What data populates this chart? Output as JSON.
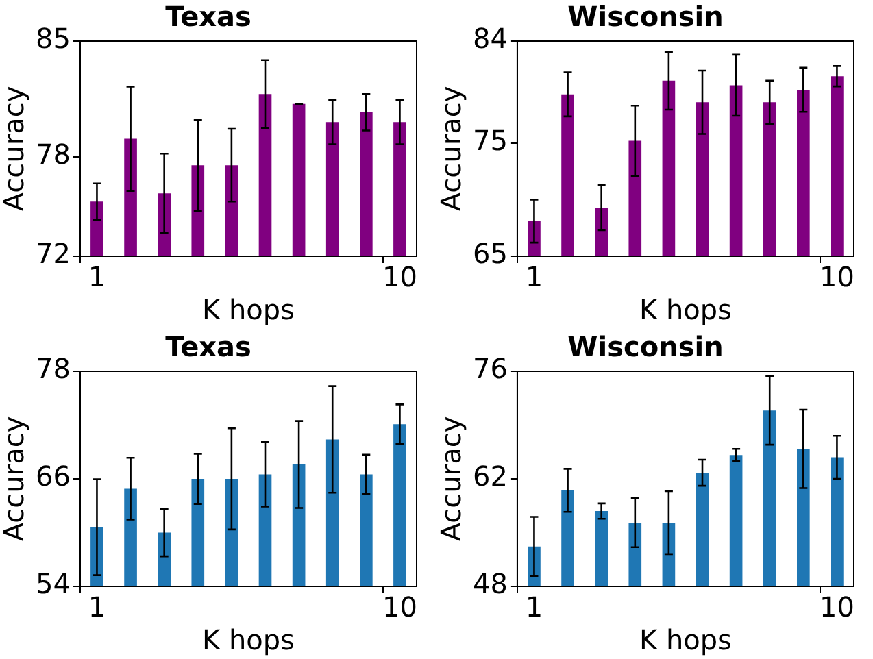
{
  "chart_data": [
    {
      "type": "bar",
      "title": "Texas",
      "xlabel": "K hops",
      "ylabel": "Accuracy",
      "categories": [
        "1",
        null,
        null,
        null,
        null,
        null,
        null,
        null,
        null,
        "10"
      ],
      "color": "#800080",
      "values": [
        75.3,
        79.1,
        75.8,
        77.5,
        77.5,
        81.8,
        81.2,
        80.1,
        80.7,
        80.1
      ],
      "errors": [
        1.1,
        3.15,
        2.4,
        2.75,
        2.2,
        2.05,
        0,
        1.33,
        1.1,
        1.33
      ],
      "ylim": [
        72,
        85
      ],
      "yticks": [
        72,
        78,
        85
      ]
    },
    {
      "type": "bar",
      "title": "Wisconsin",
      "xlabel": "K hops",
      "ylabel": "Accuracy",
      "categories": [
        "1",
        null,
        null,
        null,
        null,
        null,
        null,
        null,
        null,
        "10"
      ],
      "color": "#800080",
      "values": [
        68.1,
        79.3,
        69.3,
        75.2,
        80.5,
        78.6,
        80.1,
        78.6,
        79.7,
        80.9
      ],
      "errors": [
        1.9,
        1.95,
        2.0,
        3.1,
        2.55,
        2.8,
        2.7,
        1.9,
        1.95,
        0.9
      ],
      "ylim": [
        65,
        84
      ],
      "yticks": [
        65,
        75,
        84
      ]
    },
    {
      "type": "bar",
      "title": "Texas",
      "xlabel": "K hops",
      "ylabel": "Accuracy",
      "categories": [
        "1",
        null,
        null,
        null,
        null,
        null,
        null,
        null,
        null,
        "10"
      ],
      "color": "#1f77b4",
      "values": [
        60.6,
        64.9,
        60.0,
        66.0,
        66.0,
        66.5,
        67.6,
        70.4,
        66.5,
        72.1
      ],
      "errors": [
        5.35,
        3.45,
        2.65,
        2.8,
        5.65,
        3.6,
        4.85,
        5.95,
        2.2,
        2.2
      ],
      "ylim": [
        54,
        78
      ],
      "yticks": [
        54,
        66,
        78
      ]
    },
    {
      "type": "bar",
      "title": "Wisconsin",
      "xlabel": "K hops",
      "ylabel": "Accuracy",
      "categories": [
        "1",
        null,
        null,
        null,
        null,
        null,
        null,
        null,
        null,
        "10"
      ],
      "color": "#1f77b4",
      "values": [
        53.2,
        60.5,
        57.8,
        56.3,
        56.3,
        62.8,
        65.1,
        70.9,
        65.9,
        64.8
      ],
      "errors": [
        3.85,
        2.8,
        1.0,
        3.2,
        4.1,
        1.7,
        0.8,
        4.45,
        5.1,
        2.8
      ],
      "ylim": [
        48,
        76
      ],
      "yticks": [
        48,
        62,
        76
      ]
    }
  ]
}
